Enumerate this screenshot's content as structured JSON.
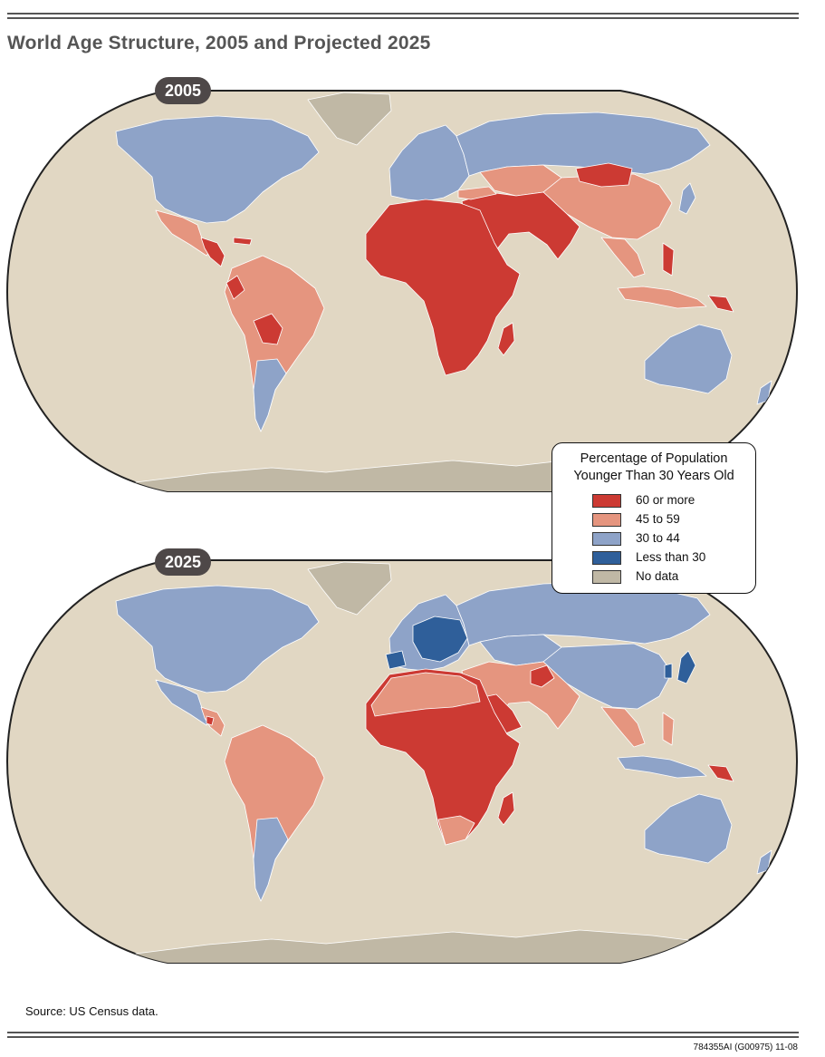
{
  "header": {
    "title": "World Age Structure, 2005 and Projected 2025"
  },
  "maps": [
    {
      "year": "2005"
    },
    {
      "year": "2025"
    }
  ],
  "legend": {
    "title_line1": "Percentage of Population",
    "title_line2": "Younger Than 30 Years Old",
    "items": [
      {
        "label": "60 or more",
        "color": "#cc3a33"
      },
      {
        "label": "45 to 59",
        "color": "#e5957f"
      },
      {
        "label": "30 to 44",
        "color": "#8ea3c8"
      },
      {
        "label": "Less than 30",
        "color": "#2f5f9a"
      },
      {
        "label": "No data",
        "color": "#c0b8a5"
      }
    ]
  },
  "colors": {
    "ocean": "#e1d7c3",
    "border": "#ffffff",
    "outline": "#222222",
    "no_data": "#c0b8a5"
  },
  "footer": {
    "source": "Source: US Census data.",
    "code": "784355AI (G00975) 11-08"
  }
}
